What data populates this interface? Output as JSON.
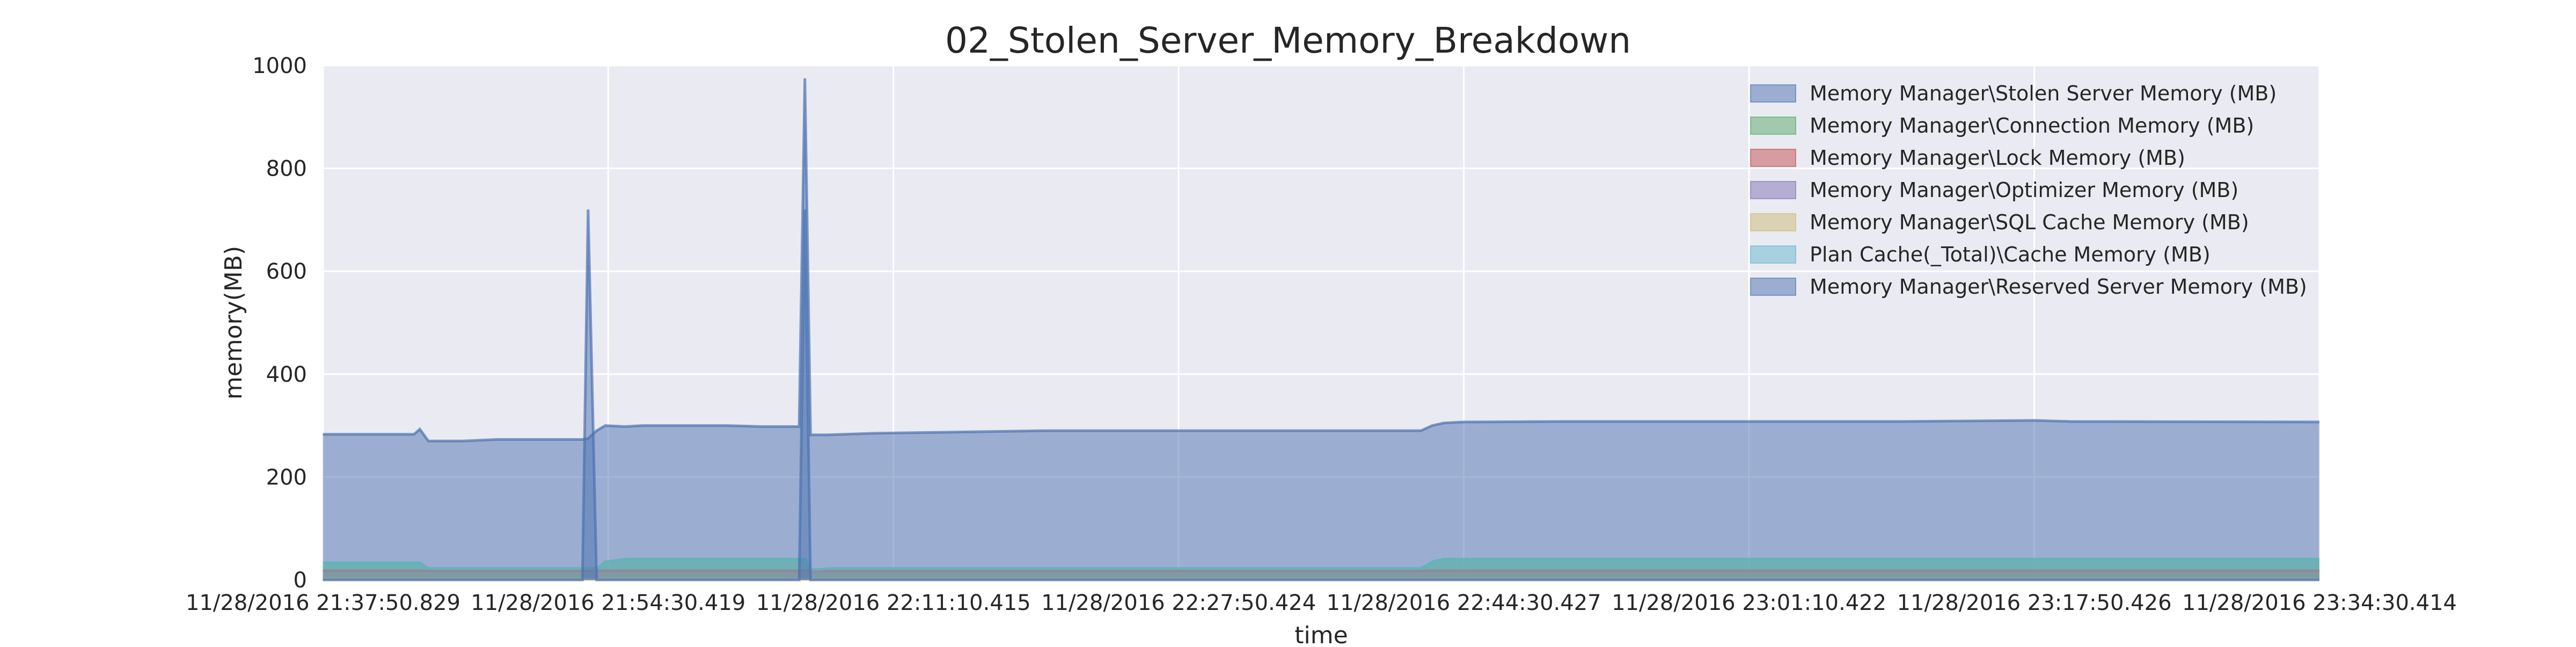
{
  "chart_data": {
    "type": "area",
    "title": "02_Stolen_Server_Memory_Breakdown",
    "xlabel": "time",
    "ylabel": "memory(MB)",
    "ylim": [
      0,
      1000
    ],
    "yticks": [
      "0",
      "200",
      "400",
      "600",
      "800",
      "1000"
    ],
    "xlim": [
      "11/28/2016 21:37:50.829",
      "11/28/2016 23:34:30.414"
    ],
    "xticks": [
      "11/28/2016 21:37:50.829",
      "11/28/2016 21:54:30.419",
      "11/28/2016 22:11:10.415",
      "11/28/2016 22:27:50.424",
      "11/28/2016 22:44:30.427",
      "11/28/2016 23:01:10.422",
      "11/28/2016 23:17:50.426",
      "11/28/2016 23:34:30.414"
    ],
    "grid": true,
    "legend_position": "top-right",
    "colors": {
      "background": "#eaeaf2",
      "grid": "#ffffff",
      "series": [
        "#4c72b0",
        "#55a868",
        "#c44e52",
        "#8172b2",
        "#ccb974",
        "#64b5cd",
        "#4c72b0"
      ]
    },
    "series": [
      {
        "name": "Memory Manager\\Stolen Server Memory (MB)",
        "x": [
          "21:37:50",
          "21:43:10",
          "21:43:30",
          "21:44:00",
          "21:46:00",
          "21:48:00",
          "21:53:00",
          "21:53:20",
          "21:53:50",
          "21:54:20",
          "21:55:30",
          "21:56:30",
          "21:57:30",
          "22:00:00",
          "22:01:30",
          "22:03:30",
          "22:05:40",
          "22:06:00",
          "22:06:20",
          "22:06:50",
          "22:07:20",
          "22:10:00",
          "22:20:00",
          "22:30:00",
          "22:40:00",
          "22:42:00",
          "22:42:40",
          "22:43:20",
          "22:44:30",
          "22:45:00",
          "22:50:00",
          "23:00:00",
          "23:10:00",
          "23:17:50",
          "23:20:00",
          "23:34:30"
        ],
        "values": [
          283,
          283,
          293,
          270,
          270,
          273,
          273,
          275,
          290,
          300,
          298,
          300,
          300,
          300,
          300,
          298,
          298,
          975,
          282,
          282,
          282,
          285,
          290,
          290,
          290,
          290,
          300,
          305,
          307,
          307,
          308,
          308,
          308,
          310,
          308,
          307
        ]
      },
      {
        "name": "Memory Manager\\Connection Memory (MB)",
        "x": [
          "21:37:50",
          "21:43:30",
          "21:44:00",
          "21:53:00",
          "21:53:20",
          "21:53:50",
          "21:54:20",
          "21:55:30",
          "22:03:30",
          "22:05:40",
          "22:06:00",
          "22:06:20",
          "22:06:50",
          "22:07:20",
          "22:42:00",
          "22:42:40",
          "22:43:20",
          "23:34:30"
        ],
        "values": [
          33,
          33,
          22,
          22,
          22,
          22,
          35,
          40,
          40,
          40,
          40,
          20,
          20,
          22,
          22,
          35,
          40,
          40
        ]
      },
      {
        "name": "Memory Manager\\Lock Memory (MB)",
        "x": [
          "21:37:50",
          "23:34:30"
        ],
        "values": [
          18,
          18
        ]
      },
      {
        "name": "Memory Manager\\Optimizer Memory (MB)",
        "x": [
          "21:37:50",
          "23:34:30"
        ],
        "values": [
          2,
          2
        ]
      },
      {
        "name": "Memory Manager\\SQL Cache Memory (MB)",
        "x": [
          "21:37:50",
          "23:34:30"
        ],
        "values": [
          1,
          1
        ]
      },
      {
        "name": "Plan Cache(_Total)\\Cache Memory (MB)",
        "x": [
          "21:37:50",
          "21:43:30",
          "21:44:00",
          "21:53:00",
          "21:53:20",
          "21:53:50",
          "21:54:20",
          "21:55:30",
          "22:03:30",
          "22:05:40",
          "22:06:00",
          "22:06:20",
          "22:06:50",
          "22:07:20",
          "22:42:00",
          "22:42:40",
          "22:43:20",
          "23:34:30"
        ],
        "values": [
          33,
          33,
          22,
          22,
          22,
          22,
          35,
          40,
          40,
          40,
          40,
          20,
          20,
          22,
          22,
          35,
          40,
          40
        ]
      },
      {
        "name": "Memory Manager\\Reserved Server Memory (MB)",
        "x": [
          "21:37:50",
          "21:44:00",
          "21:53:00",
          "21:53:20",
          "21:53:50",
          "21:54:20",
          "22:05:40",
          "22:06:00",
          "22:06:20",
          "22:06:50",
          "23:34:30"
        ],
        "values": [
          0,
          0,
          0,
          720,
          0,
          0,
          0,
          720,
          0,
          0,
          0
        ]
      }
    ]
  }
}
